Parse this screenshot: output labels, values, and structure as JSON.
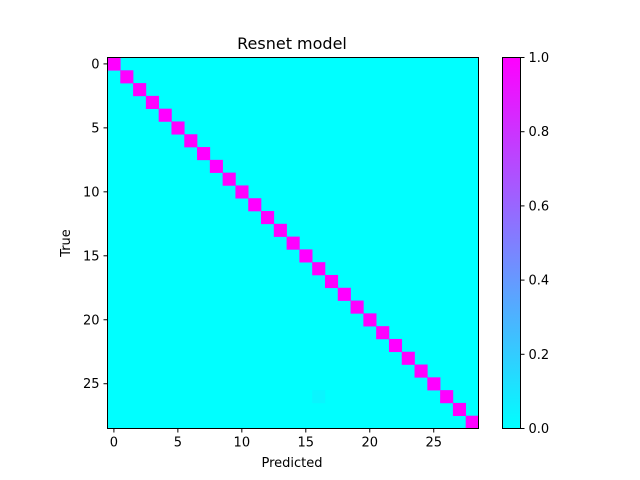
{
  "chart_data": {
    "type": "heatmap",
    "title": "Resnet model",
    "xlabel": "Predicted",
    "ylabel": "True",
    "size": 29,
    "x_ticks": [
      0,
      5,
      10,
      15,
      20,
      25
    ],
    "y_ticks": [
      0,
      5,
      10,
      15,
      20,
      25
    ],
    "diagonal_value": 1.0,
    "off_diagonal_value": 0.0,
    "off_diagonal_cells": [
      {
        "true": 26,
        "predicted": 16,
        "value": 0.04
      }
    ],
    "colormap": "cool",
    "colormap_low": "#00ffff",
    "colormap_high": "#ff00ff",
    "colorbar": {
      "range": [
        0.0,
        1.0
      ],
      "ticks": [
        "0.0",
        "0.2",
        "0.4",
        "0.6",
        "0.8",
        "1.0"
      ]
    },
    "grid": false
  }
}
